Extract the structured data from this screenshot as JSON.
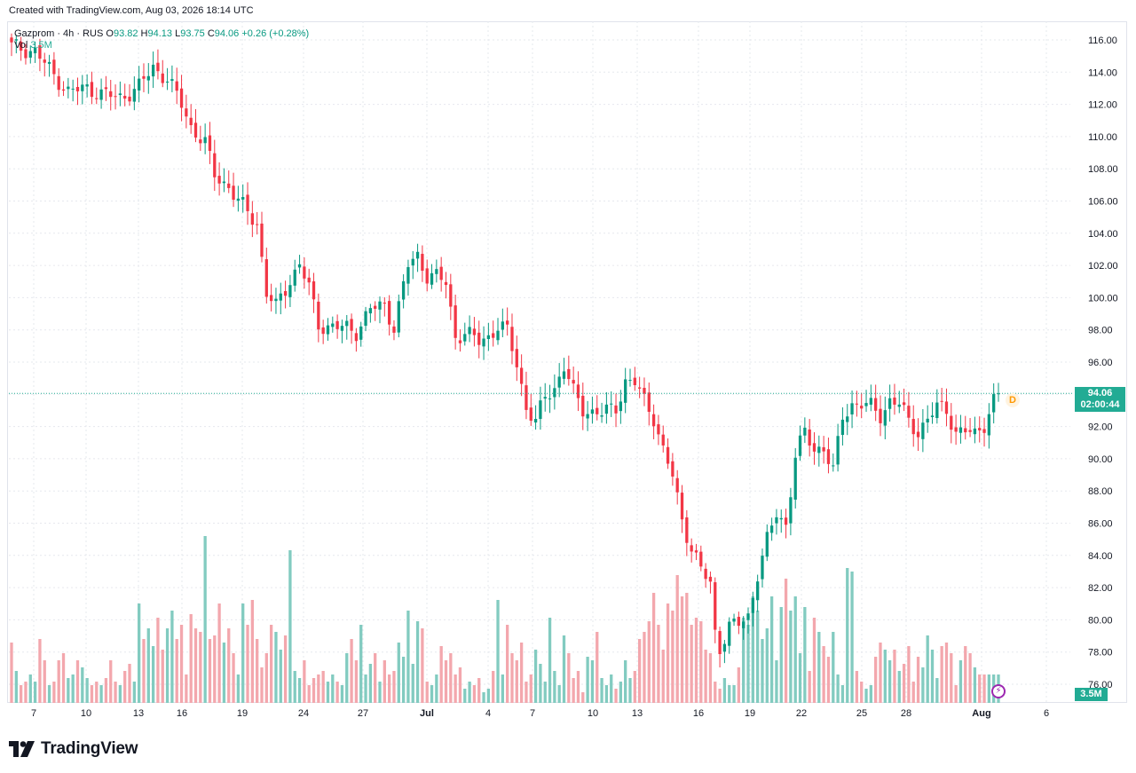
{
  "caption": "Created with TradingView.com, Aug 03, 2026 18:14 UTC",
  "legend": {
    "symbol": "Gazprom",
    "interval": "4h",
    "exchange": "RUS",
    "o_label": "O",
    "o_value": "93.82",
    "h_label": "H",
    "h_value": "94.13",
    "l_label": "L",
    "l_value": "93.75",
    "c_label": "C",
    "c_value": "94.06",
    "change": "+0.26 (+0.28%)",
    "vol_label": "Vol",
    "vol_value": "3.5M"
  },
  "price_tag": {
    "price": "94.06",
    "countdown": "02:00:44"
  },
  "volume_tag": "3.5M",
  "d_badge": "D",
  "brand": "TradingView",
  "colors": {
    "up": "#089981",
    "down": "#f23645",
    "vol_up": "#82cbc0",
    "vol_down": "#f3a7ad",
    "grid": "#e6e8ee",
    "price_line": "#22ab94"
  },
  "chart_data": {
    "type": "candlestick",
    "y_ticks": [
      "116.00",
      "114.00",
      "112.00",
      "110.00",
      "108.00",
      "106.00",
      "104.00",
      "102.00",
      "100.00",
      "98.00",
      "96.00",
      "94.00",
      "92.00",
      "90.00",
      "88.00",
      "86.00",
      "84.00",
      "82.00",
      "80.00",
      "78.00",
      "76.00"
    ],
    "ylim": [
      75.2,
      116.8
    ],
    "x_ticks": [
      "7",
      "10",
      "13",
      "16",
      "19",
      "24",
      "27",
      "Jul",
      "4",
      "7",
      "10",
      "13",
      "16",
      "19",
      "22",
      "25",
      "28",
      "Aug",
      "6"
    ],
    "last_price": 94.06,
    "close_path": [
      [
        0,
        115.6
      ],
      [
        5,
        115.3
      ],
      [
        9,
        113.8
      ],
      [
        12,
        112.8
      ],
      [
        16,
        113.0
      ],
      [
        20,
        112.6
      ],
      [
        23,
        112.4
      ],
      [
        27,
        113.1
      ],
      [
        30,
        114.3
      ],
      [
        33,
        113.6
      ],
      [
        36,
        112.0
      ],
      [
        38,
        110.6
      ],
      [
        41,
        109.6
      ],
      [
        43,
        107.6
      ],
      [
        46,
        106.9
      ],
      [
        48,
        106.0
      ],
      [
        52,
        104.6
      ],
      [
        54,
        100.3
      ],
      [
        56,
        99.4
      ],
      [
        59,
        101.1
      ],
      [
        61,
        102.1
      ],
      [
        63,
        100.6
      ],
      [
        65,
        98.3
      ],
      [
        68,
        98.2
      ],
      [
        71,
        98.1
      ],
      [
        73,
        97.9
      ],
      [
        76,
        99.3
      ],
      [
        79,
        99.5
      ],
      [
        81,
        98.2
      ],
      [
        84,
        102.0
      ],
      [
        86,
        102.6
      ],
      [
        88,
        101.4
      ],
      [
        90,
        101.3
      ],
      [
        92,
        100.9
      ],
      [
        94,
        97.6
      ],
      [
        96,
        97.8
      ],
      [
        99,
        97.3
      ],
      [
        101,
        97.6
      ],
      [
        103,
        98.2
      ],
      [
        105,
        97.9
      ],
      [
        107,
        95.9
      ],
      [
        109,
        93.2
      ],
      [
        111,
        92.2
      ],
      [
        113,
        93.9
      ],
      [
        115,
        94.4
      ],
      [
        117,
        95.7
      ],
      [
        119,
        94.1
      ],
      [
        121,
        93.1
      ],
      [
        123,
        92.9
      ],
      [
        125,
        92.8
      ],
      [
        128,
        93.2
      ],
      [
        130,
        94.8
      ],
      [
        132,
        94.7
      ],
      [
        134,
        93.6
      ],
      [
        136,
        92.6
      ],
      [
        138,
        90.5
      ],
      [
        140,
        88.9
      ],
      [
        142,
        86.2
      ],
      [
        144,
        84.5
      ],
      [
        146,
        83.1
      ],
      [
        148,
        82.2
      ],
      [
        149,
        79.2
      ],
      [
        150,
        78.3
      ],
      [
        152,
        79.6
      ],
      [
        154,
        79.7
      ],
      [
        156,
        80.2
      ],
      [
        158,
        82.9
      ],
      [
        160,
        84.9
      ],
      [
        162,
        86.6
      ],
      [
        164,
        85.9
      ],
      [
        166,
        90.2
      ],
      [
        168,
        91.6
      ],
      [
        170,
        90.6
      ],
      [
        172,
        90.7
      ],
      [
        174,
        89.2
      ],
      [
        176,
        92.6
      ],
      [
        178,
        93.4
      ],
      [
        180,
        93.4
      ],
      [
        182,
        93.2
      ],
      [
        184,
        92.7
      ],
      [
        186,
        93.6
      ],
      [
        188,
        93.4
      ],
      [
        190,
        92.3
      ],
      [
        192,
        91.7
      ],
      [
        194,
        92.4
      ],
      [
        196,
        93.2
      ],
      [
        198,
        93.1
      ],
      [
        200,
        91.6
      ],
      [
        202,
        91.7
      ],
      [
        204,
        91.5
      ],
      [
        206,
        92.2
      ],
      [
        208,
        93.6
      ],
      [
        209,
        94.06
      ]
    ],
    "volume_levels": [
      0.17,
      0.09,
      0.05,
      0.06,
      0.08,
      0.06,
      0.18,
      0.12,
      0.05,
      0.06,
      0.12,
      0.14,
      0.07,
      0.08,
      0.12,
      0.1,
      0.07,
      0.05,
      0.06,
      0.05,
      0.07,
      0.12,
      0.06,
      0.05,
      0.09,
      0.11,
      0.06,
      0.28,
      0.18,
      0.21,
      0.16,
      0.24,
      0.15,
      0.21,
      0.26,
      0.18,
      0.22,
      0.08,
      0.25,
      0.21,
      0.2,
      0.47,
      0.18,
      0.19,
      0.28,
      0.17,
      0.21,
      0.14,
      0.08,
      0.28,
      0.22,
      0.29,
      0.18,
      0.1,
      0.14,
      0.22,
      0.2,
      0.15,
      0.19,
      0.43,
      0.09,
      0.07,
      0.12,
      0.05,
      0.07,
      0.08,
      0.09,
      0.06,
      0.08,
      0.06,
      0.05,
      0.14,
      0.18,
      0.12,
      0.22,
      0.08,
      0.11,
      0.14,
      0.06,
      0.12,
      0.08,
      0.09,
      0.17,
      0.13,
      0.26,
      0.11,
      0.23,
      0.21,
      0.06,
      0.05,
      0.08,
      0.16,
      0.12,
      0.14,
      0.08,
      0.1,
      0.04,
      0.06,
      0.05,
      0.07,
      0.03,
      0.04,
      0.09,
      0.29,
      0.08,
      0.22,
      0.14,
      0.12,
      0.17,
      0.06,
      0.08,
      0.15,
      0.11,
      0.06,
      0.24,
      0.09,
      0.05,
      0.19,
      0.14,
      0.07,
      0.09,
      0.03,
      0.13,
      0.12,
      0.2,
      0.07,
      0.05,
      0.08,
      0.04,
      0.06,
      0.12,
      0.07,
      0.09,
      0.18,
      0.2,
      0.23,
      0.31,
      0.22,
      0.15,
      0.28,
      0.26,
      0.36,
      0.3,
      0.31,
      0.22,
      0.24,
      0.23,
      0.15,
      0.14,
      0.06,
      0.04,
      0.07,
      0.05,
      0.05,
      0.1,
      0.24,
      0.22,
      0.3,
      0.26,
      0.18,
      0.21,
      0.3,
      0.12,
      0.27,
      0.35,
      0.26,
      0.3,
      0.14,
      0.27,
      0.09,
      0.24,
      0.2,
      0.16,
      0.13,
      0.2,
      0.08,
      0.05,
      0.38,
      0.37,
      0.09,
      0.06,
      0.04,
      0.05,
      0.13,
      0.17,
      0.15,
      0.12,
      0.15,
      0.09,
      0.11,
      0.16,
      0.06,
      0.13,
      0.1,
      0.19,
      0.15,
      0.07,
      0.16,
      0.17,
      0.14,
      0.05,
      0.12,
      0.16,
      0.14,
      0.1,
      0.08,
      0.08,
      0.08
    ]
  }
}
